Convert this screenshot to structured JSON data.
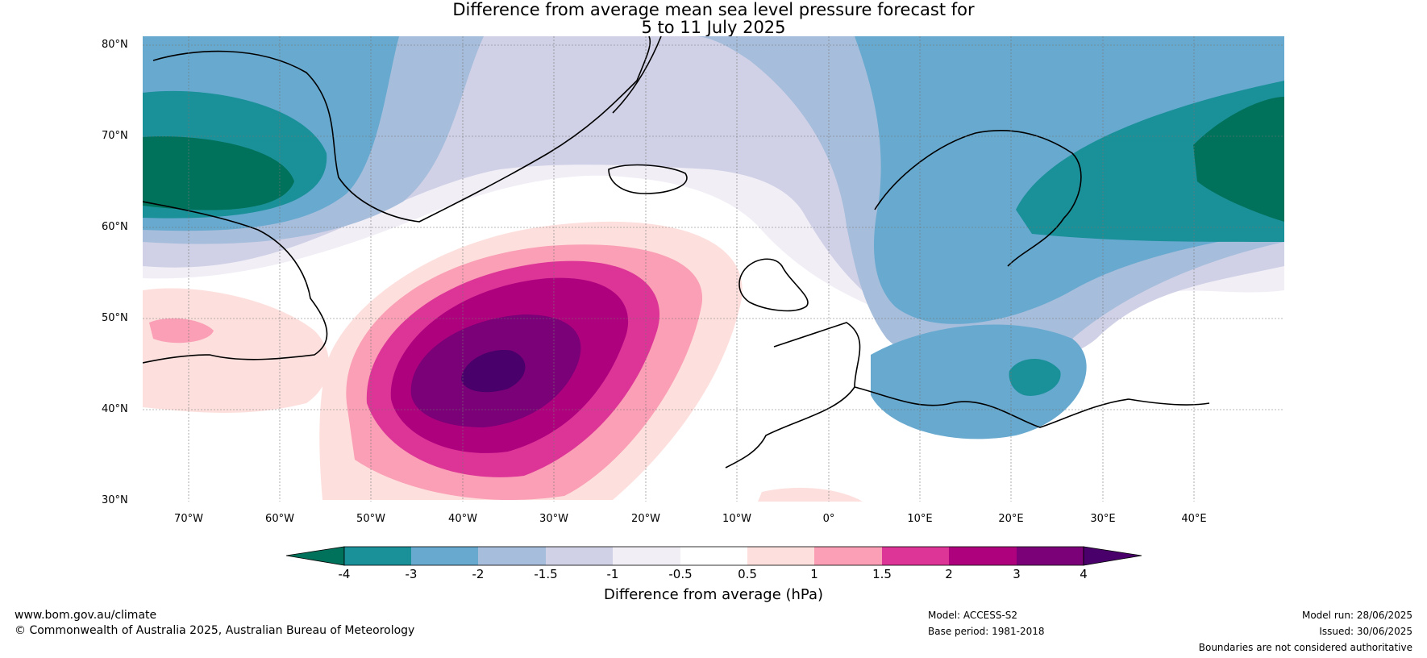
{
  "title": {
    "line1": "Difference from average mean sea level pressure forecast for",
    "line2": "5 to 11 July 2025"
  },
  "latitude_labels": [
    "80°N",
    "70°N",
    "60°N",
    "50°N",
    "40°N",
    "30°N"
  ],
  "longitude_labels": [
    "70°W",
    "60°W",
    "50°W",
    "40°W",
    "30°W",
    "20°W",
    "10°W",
    "0°",
    "10°E",
    "20°E",
    "30°E",
    "40°E"
  ],
  "colorbar": {
    "label": "Difference from average (hPa)",
    "ticks": [
      "-4",
      "-3",
      "-2",
      "-1.5",
      "-1",
      "-0.5",
      "0.5",
      "1",
      "1.5",
      "2",
      "3",
      "4"
    ],
    "colors": {
      "lt_minus4": "#00715a",
      "m4_m3": "#1a9099",
      "m3_m2": "#67a9cf",
      "m2_m15": "#a6bddb",
      "m15_m1": "#d0d1e6",
      "m1_m05": "#f1eef6",
      "m05_05": "#ffffff",
      "p05_1": "#fde0dd",
      "p1_15": "#fa9fb5",
      "p15_2": "#dd3497",
      "p2_3": "#ae017e",
      "p3_4": "#7a0177",
      "gt4": "#49006a"
    }
  },
  "footer": {
    "url": "www.bom.gov.au/climate",
    "copyright": "© Commonwealth of Australia 2025, Australian Bureau of Meteorology",
    "model": "Model: ACCESS-S2",
    "base_period": "Base period: 1981-2018",
    "model_run": "Model run: 28/06/2025",
    "issued": "Issued: 30/06/2025",
    "disclaimer": "Boundaries are not considered authoritative"
  }
}
